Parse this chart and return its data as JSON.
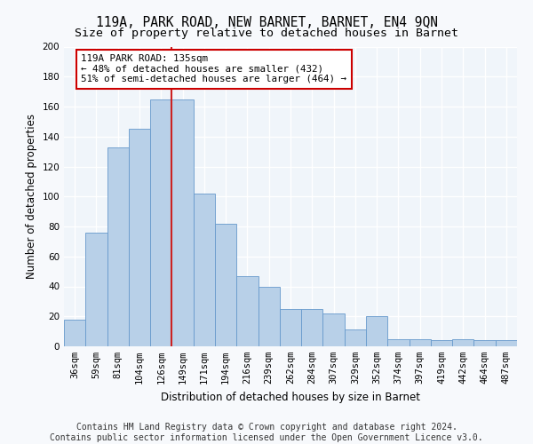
{
  "title": "119A, PARK ROAD, NEW BARNET, BARNET, EN4 9QN",
  "subtitle": "Size of property relative to detached houses in Barnet",
  "xlabel": "Distribution of detached houses by size in Barnet",
  "ylabel": "Number of detached properties",
  "bar_values": [
    18,
    76,
    133,
    145,
    165,
    165,
    102,
    82,
    47,
    40,
    25,
    25,
    22,
    11,
    20,
    5,
    5,
    4,
    5,
    4,
    4
  ],
  "bar_labels": [
    "36sqm",
    "59sqm",
    "81sqm",
    "104sqm",
    "126sqm",
    "149sqm",
    "171sqm",
    "194sqm",
    "216sqm",
    "239sqm",
    "262sqm",
    "284sqm",
    "307sqm",
    "329sqm",
    "352sqm",
    "374sqm",
    "397sqm",
    "419sqm",
    "442sqm",
    "464sqm",
    "487sqm"
  ],
  "bar_color": "#b8d0e8",
  "bar_edge_color": "#6699cc",
  "vline_x": 5,
  "vline_color": "#cc2222",
  "annotation_text": "119A PARK ROAD: 135sqm\n← 48% of detached houses are smaller (432)\n51% of semi-detached houses are larger (464) →",
  "annotation_box_color": "#ffffff",
  "annotation_box_edge": "#cc0000",
  "ylim": [
    0,
    200
  ],
  "yticks": [
    0,
    20,
    40,
    60,
    80,
    100,
    120,
    140,
    160,
    180,
    200
  ],
  "footer": "Contains HM Land Registry data © Crown copyright and database right 2024.\nContains public sector information licensed under the Open Government Licence v3.0.",
  "bg_color": "#f7f9fc",
  "plot_bg_color": "#f0f5fa",
  "title_fontsize": 10.5,
  "subtitle_fontsize": 9.5,
  "axis_label_fontsize": 8.5,
  "tick_fontsize": 7.5,
  "footer_fontsize": 7
}
